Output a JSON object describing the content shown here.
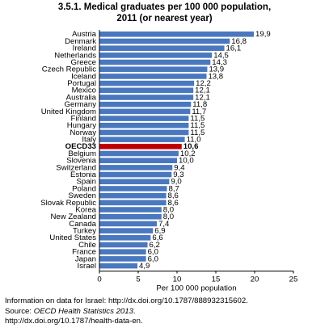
{
  "chart_data": {
    "type": "bar",
    "orientation": "horizontal",
    "title": "3.5.1. Medical graduates per 100 000 population, 2011 (or nearest year)",
    "xlabel": "Per 100 000 population",
    "ylabel": "",
    "xlim": [
      0,
      25
    ],
    "xticks": [
      0,
      5,
      10,
      15,
      20,
      25
    ],
    "grid": false,
    "bar_color": "#4a78bf",
    "highlight_color": "#c00000",
    "highlight_category": "OECD33",
    "categories": [
      "Austria",
      "Denmark",
      "Ireland",
      "Netherlands",
      "Greece",
      "Czech Republic",
      "Iceland",
      "Portugal",
      "Mexico",
      "Australia",
      "Germany",
      "United Kingdom",
      "Finland",
      "Hungary",
      "Norway",
      "Italy",
      "OECD33",
      "Belgium",
      "Slovenia",
      "Switzerland",
      "Estonia",
      "Spain",
      "Poland",
      "Sweden",
      "Slovak Republic",
      "Korea",
      "New Zealand",
      "Canada",
      "Turkey",
      "United States",
      "Chile",
      "France",
      "Japan",
      "Israel"
    ],
    "value_labels": [
      "19,9",
      "16,8",
      "16,1",
      "14,5",
      "14,3",
      "13,9",
      "13,8",
      "12,2",
      "12,1",
      "12,1",
      "11,8",
      "11,7",
      "11,5",
      "11,5",
      "11,5",
      "11,0",
      "10,6",
      "10,2",
      "10,0",
      "9,4",
      "9,3",
      "9,0",
      "8,7",
      "8,6",
      "8,6",
      "8,0",
      "8,0",
      "7,4",
      "6,9",
      "6,6",
      "6,2",
      "6,0",
      "6,0",
      "4,9"
    ],
    "values": [
      19.9,
      16.8,
      16.1,
      14.5,
      14.3,
      13.9,
      13.8,
      12.2,
      12.1,
      12.1,
      11.8,
      11.7,
      11.5,
      11.5,
      11.5,
      11.0,
      10.6,
      10.2,
      10.0,
      9.4,
      9.3,
      9.0,
      8.7,
      8.6,
      8.6,
      8.0,
      8.0,
      7.4,
      6.9,
      6.6,
      6.2,
      6.0,
      6.0,
      4.9
    ]
  },
  "notes": {
    "line1": "Information on data for Israel: http://dx.doi.org/10.1787/888932315602.",
    "line2_prefix": "Source: ",
    "line2_title": "OECD Health Statistics 2013",
    "line2_suffix": ".",
    "line3": "http://dx.doi.org/10.1787/health-data-en."
  }
}
